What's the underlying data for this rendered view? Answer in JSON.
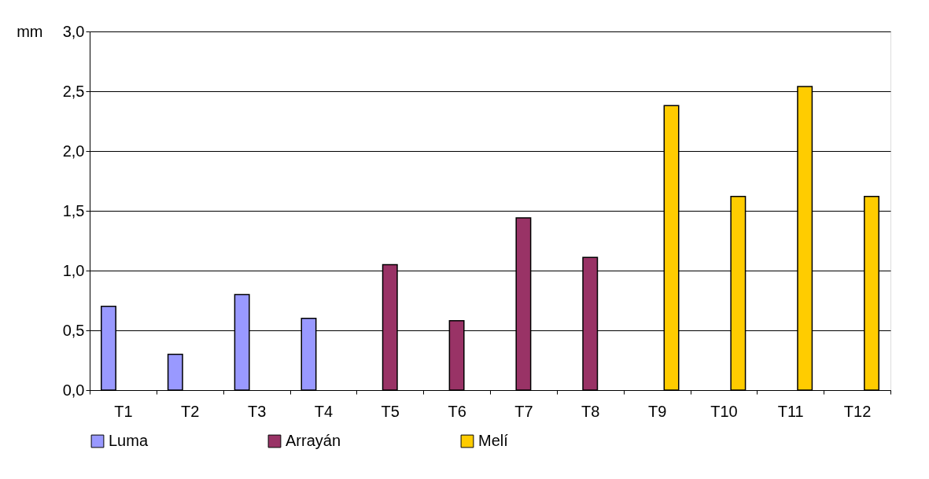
{
  "chart_data": {
    "type": "bar",
    "ylabel": "mm",
    "categories": [
      "T1",
      "T2",
      "T3",
      "T4",
      "T5",
      "T6",
      "T7",
      "T8",
      "T9",
      "T10",
      "T11",
      "T12"
    ],
    "series": [
      {
        "name": "Luma",
        "color": "#9999ff",
        "values": [
          0.7,
          0.3,
          0.8,
          0.6,
          null,
          null,
          null,
          null,
          null,
          null,
          null,
          null
        ]
      },
      {
        "name": "Arrayán",
        "color": "#993366",
        "values": [
          null,
          null,
          null,
          null,
          1.05,
          0.58,
          1.44,
          1.11,
          null,
          null,
          null,
          null
        ]
      },
      {
        "name": "Melí",
        "color": "#ffcc00",
        "values": [
          null,
          null,
          null,
          null,
          null,
          null,
          null,
          null,
          2.38,
          1.62,
          2.54,
          1.62
        ]
      }
    ],
    "ylim": [
      0,
      3
    ],
    "yticks": [
      {
        "value": 0,
        "label": "0,0"
      },
      {
        "value": 0.5,
        "label": "0,5"
      },
      {
        "value": 1,
        "label": "1,0"
      },
      {
        "value": 1.5,
        "label": "1,5"
      },
      {
        "value": 2,
        "label": "2,0"
      },
      {
        "value": 2.5,
        "label": "2,5"
      },
      {
        "value": 3,
        "label": "3,0"
      }
    ],
    "grid": "y",
    "legend": "bottom"
  }
}
